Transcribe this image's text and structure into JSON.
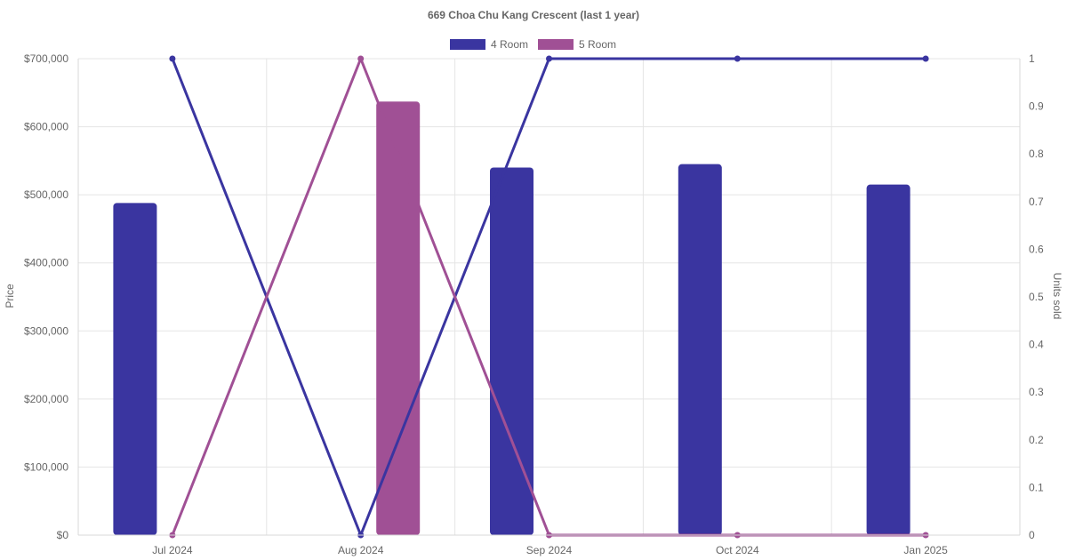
{
  "chart_data": {
    "type": "bar",
    "title": "669 Choa Chu Kang Crescent (last 1 year)",
    "categories": [
      "Jul 2024",
      "Aug 2024",
      "Sep 2024",
      "Oct 2024",
      "Jan 2025"
    ],
    "y_left": {
      "label": "Price",
      "range": [
        0,
        700000
      ],
      "ticks": [
        "$0",
        "$100,000",
        "$200,000",
        "$300,000",
        "$400,000",
        "$500,000",
        "$600,000",
        "$700,000"
      ],
      "tick_values": [
        0,
        100000,
        200000,
        300000,
        400000,
        500000,
        600000,
        700000
      ]
    },
    "y_right": {
      "label": "Units sold",
      "range": [
        0,
        1
      ],
      "ticks": [
        "0",
        "0.1",
        "0.2",
        "0.3",
        "0.4",
        "0.5",
        "0.6",
        "0.7",
        "0.8",
        "0.9",
        "1"
      ],
      "tick_values": [
        0,
        0.1,
        0.2,
        0.3,
        0.4,
        0.5,
        0.6,
        0.7,
        0.8,
        0.9,
        1
      ]
    },
    "legend": {
      "placement": "top-center",
      "entries": [
        {
          "name": "4 Room",
          "color": "#3a35a0"
        },
        {
          "name": "5 Room",
          "color": "#a05095"
        }
      ]
    },
    "grid": true,
    "series": [
      {
        "name": "4 Room",
        "kind": "bar",
        "axis": "left",
        "color": "#3a35a0",
        "values": [
          488000,
          null,
          540000,
          545000,
          515000
        ]
      },
      {
        "name": "5 Room",
        "kind": "bar",
        "axis": "left",
        "color": "#a05095",
        "values": [
          null,
          637000,
          null,
          null,
          null
        ]
      },
      {
        "name": "4 Room",
        "kind": "line",
        "axis": "right",
        "color": "#3a35a0",
        "values": [
          1,
          0,
          1,
          1,
          1
        ]
      },
      {
        "name": "5 Room",
        "kind": "line",
        "axis": "right",
        "color": "#a05095",
        "values": [
          0,
          1,
          0,
          0,
          0
        ]
      }
    ]
  }
}
